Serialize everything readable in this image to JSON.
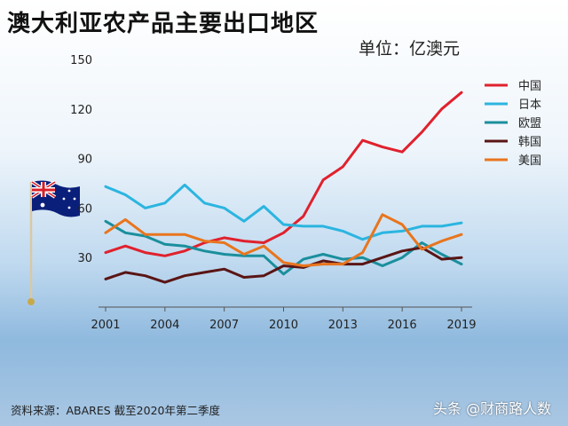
{
  "title": "澳大利亚农产品主要出口地区",
  "unit_label": "单位：亿澳元",
  "source": "资料来源：ABARES    截至2020年第二季度",
  "watermark": "头条 @财商路人数",
  "chart_data": {
    "type": "line",
    "title": "澳大利亚农产品主要出口地区",
    "ylabel": "单位：亿澳元",
    "xlabel": "",
    "x": [
      2001,
      2002,
      2003,
      2004,
      2005,
      2006,
      2007,
      2008,
      2009,
      2010,
      2011,
      2012,
      2013,
      2014,
      2015,
      2016,
      2017,
      2018,
      2019
    ],
    "xticks": [
      2001,
      2004,
      2007,
      2010,
      2013,
      2016,
      2019
    ],
    "yticks": [
      30,
      60,
      90,
      120,
      150
    ],
    "ylim": [
      0,
      150
    ],
    "xlim": [
      2001,
      2019
    ],
    "grid": false,
    "legend_position": "right",
    "series": [
      {
        "name": "中国",
        "color": "#e0212d",
        "values": [
          33,
          37,
          33,
          31,
          34,
          39,
          42,
          40,
          39,
          45,
          55,
          77,
          85,
          101,
          97,
          94,
          106,
          120,
          130
        ]
      },
      {
        "name": "日本",
        "color": "#2bb5e0",
        "values": [
          73,
          68,
          60,
          63,
          74,
          63,
          60,
          52,
          61,
          50,
          49,
          49,
          46,
          41,
          45,
          46,
          49,
          49,
          51
        ]
      },
      {
        "name": "欧盟",
        "color": "#1a8f9c",
        "values": [
          52,
          45,
          43,
          38,
          37,
          34,
          32,
          31,
          31,
          20,
          29,
          32,
          29,
          30,
          25,
          30,
          39,
          32,
          26
        ]
      },
      {
        "name": "韩国",
        "color": "#5a1515",
        "values": [
          17,
          21,
          19,
          15,
          19,
          21,
          23,
          18,
          19,
          25,
          24,
          28,
          26,
          26,
          30,
          34,
          36,
          29,
          30
        ]
      },
      {
        "name": "美国",
        "color": "#e8751e",
        "values": [
          45,
          53,
          44,
          44,
          44,
          40,
          39,
          32,
          37,
          27,
          25,
          26,
          26,
          33,
          56,
          50,
          35,
          40,
          44
        ]
      }
    ]
  }
}
